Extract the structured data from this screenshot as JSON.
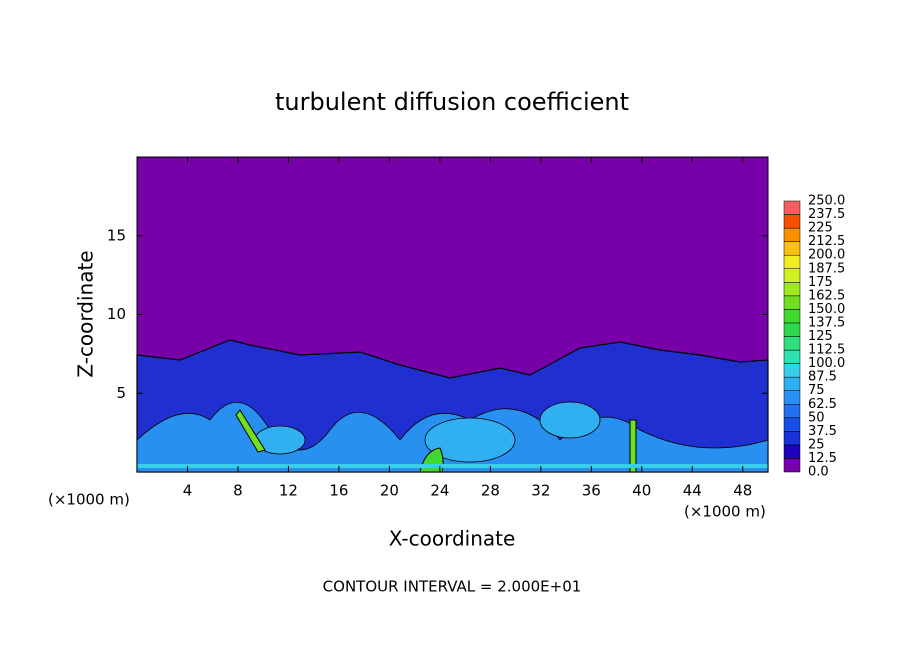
{
  "chart_data": {
    "type": "contour",
    "title": "turbulent diffusion coefficient",
    "x_label": "X-coordinate",
    "y_label": "Z-coordinate",
    "x_unit_label": "(×1000 m)",
    "footnote": "CONTOUR INTERVAL = 2.000E+01",
    "xlim": [
      0,
      50
    ],
    "ylim": [
      0,
      20
    ],
    "xticks": [
      4,
      8,
      12,
      16,
      20,
      24,
      28,
      32,
      36,
      40,
      44,
      48
    ],
    "yticks": [
      5,
      10,
      15
    ],
    "colorbar": {
      "levels": [
        {
          "value": 0,
          "label": "0.0"
        },
        12.5,
        25,
        37.5,
        50,
        62.5,
        75,
        87.5,
        {
          "value": 100,
          "label": "100.0"
        },
        112.5,
        125,
        137.5,
        {
          "value": 150,
          "label": "150.0"
        },
        162.5,
        175,
        187.5,
        {
          "value": 200,
          "label": "200.0"
        },
        212.5,
        225,
        237.5,
        {
          "value": 250,
          "label": "250.0"
        }
      ],
      "colors": [
        "#7800a8",
        "#2000c0",
        "#1830d8",
        "#1a50e8",
        "#2070f0",
        "#2890f0",
        "#30b0f0",
        "#38d0e8",
        "#30e0b0",
        "#30e080",
        "#30d850",
        "#40d830",
        "#70e020",
        "#a0e820",
        "#d0f020",
        "#f0f020",
        "#f8c010",
        "#f89000",
        "#f85000",
        "#f06060"
      ]
    }
  }
}
